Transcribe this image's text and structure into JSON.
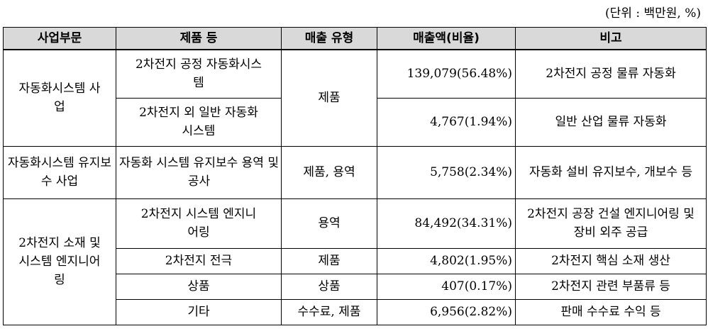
{
  "unit_note": "(단위 : 백만원, %)",
  "headers": [
    "사업부문",
    "제품 등",
    "매출 유형",
    "매출액(비율)",
    "비고"
  ],
  "rows": [
    {
      "segment": "자동화시스템 사업",
      "product": "2차전지 공정 자동화시스템",
      "type": "제품",
      "sales": "139,079(56.48%)",
      "note": "2차전지 공정 물류 자동화"
    },
    {
      "product": "2차전지 외 일반 자동화시스템",
      "sales": "4,767(1.94%)",
      "note": "일반 산업 물류 자동화"
    },
    {
      "segment": "자동화시스템 유지보수 사업",
      "product": "자동화 시스템 유지보수 용역 및 공사",
      "type": "제품, 용역",
      "sales": "5,758(2.34%)",
      "note": "자동화 설비 유지보수, 개보수 등"
    },
    {
      "segment": "2차전지 소재 및 시스템 엔지니어링",
      "product": "2차전지 시스템 엔지니어링",
      "type": "용역",
      "sales": "84,492(34.31%)",
      "note": "2차전지 공장 건설 엔지니어링 및 장비 외주 공급"
    },
    {
      "product": "2차전지 전극",
      "type": "제품",
      "sales": "4,802(1.95%)",
      "note": "2차전지 핵심 소재 생산"
    },
    {
      "product": "상품",
      "type": "상품",
      "sales": "407(0.17%)",
      "note": "2차전지 관련 부품류 등"
    },
    {
      "product": "기타",
      "type": "수수료, 제품",
      "sales": "6,956(2.82%)",
      "note": "판매 수수료 수익 등"
    }
  ]
}
